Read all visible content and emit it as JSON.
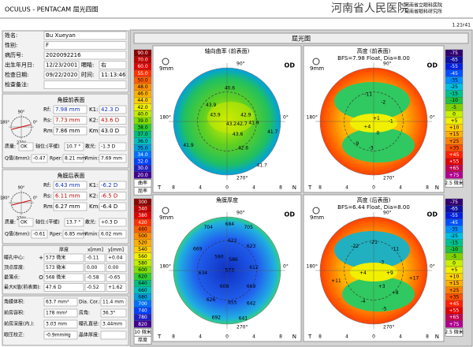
{
  "header": {
    "title": "OCULUS - PENTACAM   屈光四图",
    "hospital": "河南省人民医院",
    "sub1": "河南省立眼科医院",
    "sub2": "河南省眼科研究所",
    "version": "1.21r41"
  },
  "patient": {
    "rows": [
      [
        "姓名:",
        "Bu Xueyan"
      ],
      [
        "性别:",
        "F"
      ],
      [
        "病历号:",
        "2020092216"
      ],
      [
        "出生年月日:",
        "12/23/2001",
        "眼睛:",
        "右"
      ],
      [
        "检查日期:",
        "09/22/2020",
        "时间:",
        "11:13:46"
      ],
      [
        "检查备注:"
      ]
    ]
  },
  "front": {
    "title": "角膜前表面",
    "diagram": [
      "90°",
      "180°",
      "0°",
      "270°"
    ],
    "rows": [
      [
        "Rf:",
        "7.98 mm",
        "K1:",
        "42.3 D"
      ],
      [
        "Rs:",
        "7.73 mm",
        "K2:",
        "43.6 D"
      ],
      [
        "Rm:",
        "7.86 mm",
        "Km:",
        "43.0 D"
      ],
      [
        "质量:",
        "OK",
        "轴位:(平缓)",
        "10.7 °",
        "散光:",
        "-1.3 D"
      ],
      [
        "Q值(8mm):",
        "-0.47",
        "Rper:",
        "8.21 mm",
        "Rmin:",
        "7.69 mm"
      ]
    ]
  },
  "back": {
    "title": "角膜后表面",
    "diagram": [
      "90°",
      "180°",
      "0°",
      "270°"
    ],
    "rows": [
      [
        "Rf:",
        "6.43 mm",
        "K1:",
        "-6.2 D"
      ],
      [
        "Rs:",
        "6.11 mm",
        "K2:",
        "-6.5 D"
      ],
      [
        "Rm:",
        "6.27 mm",
        "Km:",
        "-6.4 D"
      ],
      [
        "质量:",
        "OK",
        "轴位:(平缓)",
        "13.7 °",
        "散光:",
        "+0.3 D"
      ],
      [
        "Q值(8mm):",
        "-0.61",
        "Rper:",
        "6.85 mm",
        "Rmin:",
        "6.02 mm"
      ]
    ]
  },
  "pachy": {
    "headers": [
      "厚度",
      "x[mm]",
      "y[mm]"
    ],
    "rows": [
      {
        "label": "瞳孔中心:",
        "symbol": "+",
        "values": [
          "573 微米",
          "-0.11",
          "+0.04"
        ]
      },
      {
        "label": "顶点厚度:",
        "values": [
          "573 微米",
          "0.00",
          "0.00"
        ]
      },
      {
        "label": "最薄点:",
        "symbol": "O",
        "values": [
          "568 微米",
          "-0.58",
          "-0.65"
        ]
      },
      {
        "label": "最大K值(前表面):",
        "values": [
          "47.6 D",
          "-0.52",
          "+1.62"
        ]
      }
    ]
  },
  "misc": {
    "rows": [
      [
        "角膜体积:",
        "63.7 mm³",
        "Dia. Cor.:",
        "11.4 mm"
      ],
      [
        "前房容积:",
        "178 mm³",
        "房角:",
        "36.3°"
      ],
      [
        "前房深度(内.):",
        "3.03 mm",
        "瞳孔直径:",
        "3.44mm"
      ],
      [
        "眼压校正:",
        "-0.9mmHg",
        "晶体厚度:"
      ]
    ]
  },
  "maps": {
    "title": "屈光图",
    "items": [
      {
        "title": "轴向曲率 (前表面)",
        "size": "9mm",
        "eye": "OD",
        "angles": [
          "90°",
          "180°",
          "0°",
          "270°"
        ],
        "sides": [
          "T",
          "N"
        ],
        "axis": [
          "8",
          "4",
          "0",
          "4",
          "8"
        ],
        "unit": "曲率",
        "kind": "屈率",
        "scale": [
          {
            "label": "90.0",
            "color": "#8b0000"
          },
          {
            "label": "70.0",
            "color": "#c00000"
          },
          {
            "label": "60.0",
            "color": "#e00000"
          },
          {
            "label": "55.0",
            "color": "#ff3000"
          },
          {
            "label": "50.0",
            "color": "#ff6000"
          },
          {
            "label": "48.0",
            "color": "#ff9000"
          },
          {
            "label": "46.0",
            "color": "#ffb000"
          },
          {
            "label": "44.0",
            "color": "#ffd000"
          },
          {
            "label": "42.0",
            "color": "#f0f000"
          },
          {
            "label": "40.0",
            "color": "#c0f000"
          },
          {
            "label": "39.0",
            "color": "#80e000"
          },
          {
            "label": "38.0",
            "color": "#30d030"
          },
          {
            "label": "37.0",
            "color": "#00c080"
          },
          {
            "label": "36.0",
            "color": "#00c0c0"
          },
          {
            "label": "35.0",
            "color": "#00a0e0"
          },
          {
            "label": "34.0",
            "color": "#0070ff"
          },
          {
            "label": "32.0",
            "color": "#0040ff"
          },
          {
            "label": "30.0",
            "color": "#2020c0"
          },
          {
            "label": "20.0",
            "color": "#400090"
          }
        ],
        "points": [
          "40.6",
          "43.9",
          "43.9",
          "42.9",
          "42.7",
          "41.9",
          "43.2",
          "41.7",
          "43.6",
          "41.9",
          "42.6",
          "41.7"
        ]
      },
      {
        "title": "高度 (前表面)",
        "subtitle": "BFS=7.98 Float, Dia=8.00",
        "size": "9mm",
        "eye": "OD",
        "angles": [
          "90°",
          "180°",
          "0°",
          "270°"
        ],
        "sides": [
          "T",
          "N"
        ],
        "axis": [
          "8",
          "4",
          "0",
          "4",
          "8"
        ],
        "unit": "2.5 微米",
        "scale": [
          {
            "label": "-75",
            "color": "#300070"
          },
          {
            "label": "-65",
            "color": "#1010a0"
          },
          {
            "label": "-55",
            "color": "#0020e0"
          },
          {
            "label": "-45",
            "color": "#0050ff"
          },
          {
            "label": "-35",
            "color": "#0090ff"
          },
          {
            "label": "-25",
            "color": "#00c0e0"
          },
          {
            "label": "-15",
            "color": "#00c090"
          },
          {
            "label": "-10",
            "color": "#20c040"
          },
          {
            "label": "-5",
            "color": "#80d000"
          },
          {
            "label": "0",
            "color": "#c8f000"
          },
          {
            "label": "+5",
            "color": "#f0f000"
          },
          {
            "label": "+10",
            "color": "#ffd000"
          },
          {
            "label": "+15",
            "color": "#ffb000"
          },
          {
            "label": "+25",
            "color": "#ff8000"
          },
          {
            "label": "+35",
            "color": "#ff5000"
          },
          {
            "label": "+45",
            "color": "#ff2000"
          },
          {
            "label": "+55",
            "color": "#e00000"
          },
          {
            "label": "+65",
            "color": "#c00050"
          },
          {
            "label": "+75",
            "color": "#b00090"
          }
        ],
        "points": [
          "-11",
          "-2",
          "+4",
          "0",
          "-1",
          "-9",
          "-3",
          "+1"
        ]
      },
      {
        "title": "角膜厚度",
        "size": "9mm",
        "eye": "OD",
        "angles": [
          "90°",
          "180°",
          "0°",
          "270°"
        ],
        "sides": [
          "T",
          "N"
        ],
        "axis": [
          "8",
          "4",
          "0",
          "4",
          "8"
        ],
        "unit": "10 微米",
        "kind": "厚度",
        "scale": [
          {
            "label": "300",
            "color": "#8b0000"
          },
          {
            "label": "340",
            "color": "#c00000"
          },
          {
            "label": "380",
            "color": "#e00000"
          },
          {
            "label": "420",
            "color": "#ff3000"
          },
          {
            "label": "460",
            "color": "#ff6000"
          },
          {
            "label": "500",
            "color": "#ff9000"
          },
          {
            "label": "520",
            "color": "#ffb000"
          },
          {
            "label": "540",
            "color": "#ffd000"
          },
          {
            "label": "560",
            "color": "#f0f000"
          },
          {
            "label": "580",
            "color": "#c0f000"
          },
          {
            "label": "600",
            "color": "#80e000"
          },
          {
            "label": "620",
            "color": "#30d030"
          },
          {
            "label": "640",
            "color": "#00c080"
          },
          {
            "label": "660",
            "color": "#00c0c0"
          },
          {
            "label": "680",
            "color": "#00a0e0"
          },
          {
            "label": "700",
            "color": "#0070ff"
          },
          {
            "label": "740",
            "color": "#0040ff"
          },
          {
            "label": "780",
            "color": "#2020c0"
          },
          {
            "label": "820",
            "color": "#400090"
          }
        ],
        "points": [
          "704",
          "684",
          "705",
          "669",
          "622",
          "623",
          "590",
          "586",
          "573",
          "634",
          "612",
          "608",
          "669",
          "626",
          "655",
          "642",
          "692",
          "641"
        ]
      },
      {
        "title": "高度 (后表面)",
        "subtitle": "BFS=6.44 Float, Dia=8.00",
        "size": "9mm",
        "eye": "OD",
        "angles": [
          "90°",
          "180°",
          "0°",
          "270°"
        ],
        "sides": [
          "T",
          "N"
        ],
        "axis": [
          "8",
          "4",
          "0",
          "4",
          "8"
        ],
        "unit": "2.5 微米",
        "scale": [
          {
            "label": "-75",
            "color": "#300070"
          },
          {
            "label": "-65",
            "color": "#1010a0"
          },
          {
            "label": "-55",
            "color": "#0020e0"
          },
          {
            "label": "-45",
            "color": "#0050ff"
          },
          {
            "label": "-35",
            "color": "#0090ff"
          },
          {
            "label": "-25",
            "color": "#00c0e0"
          },
          {
            "label": "-15",
            "color": "#00c090"
          },
          {
            "label": "-10",
            "color": "#20c040"
          },
          {
            "label": "-5",
            "color": "#80d000"
          },
          {
            "label": "0",
            "color": "#c8f000"
          },
          {
            "label": "+5",
            "color": "#f0f000"
          },
          {
            "label": "+10",
            "color": "#ffd000"
          },
          {
            "label": "+15",
            "color": "#ffb000"
          },
          {
            "label": "+25",
            "color": "#ff8000"
          },
          {
            "label": "+35",
            "color": "#ff5000"
          },
          {
            "label": "+45",
            "color": "#ff2000"
          },
          {
            "label": "+55",
            "color": "#e00000"
          },
          {
            "label": "+65",
            "color": "#c00050"
          },
          {
            "label": "+75",
            "color": "#b00090"
          }
        ],
        "points": [
          "-22",
          "-21",
          "-11",
          "-3",
          "+4",
          "+11",
          "+9",
          "+3",
          "+17",
          "+8",
          "-4",
          "-5"
        ]
      }
    ]
  }
}
